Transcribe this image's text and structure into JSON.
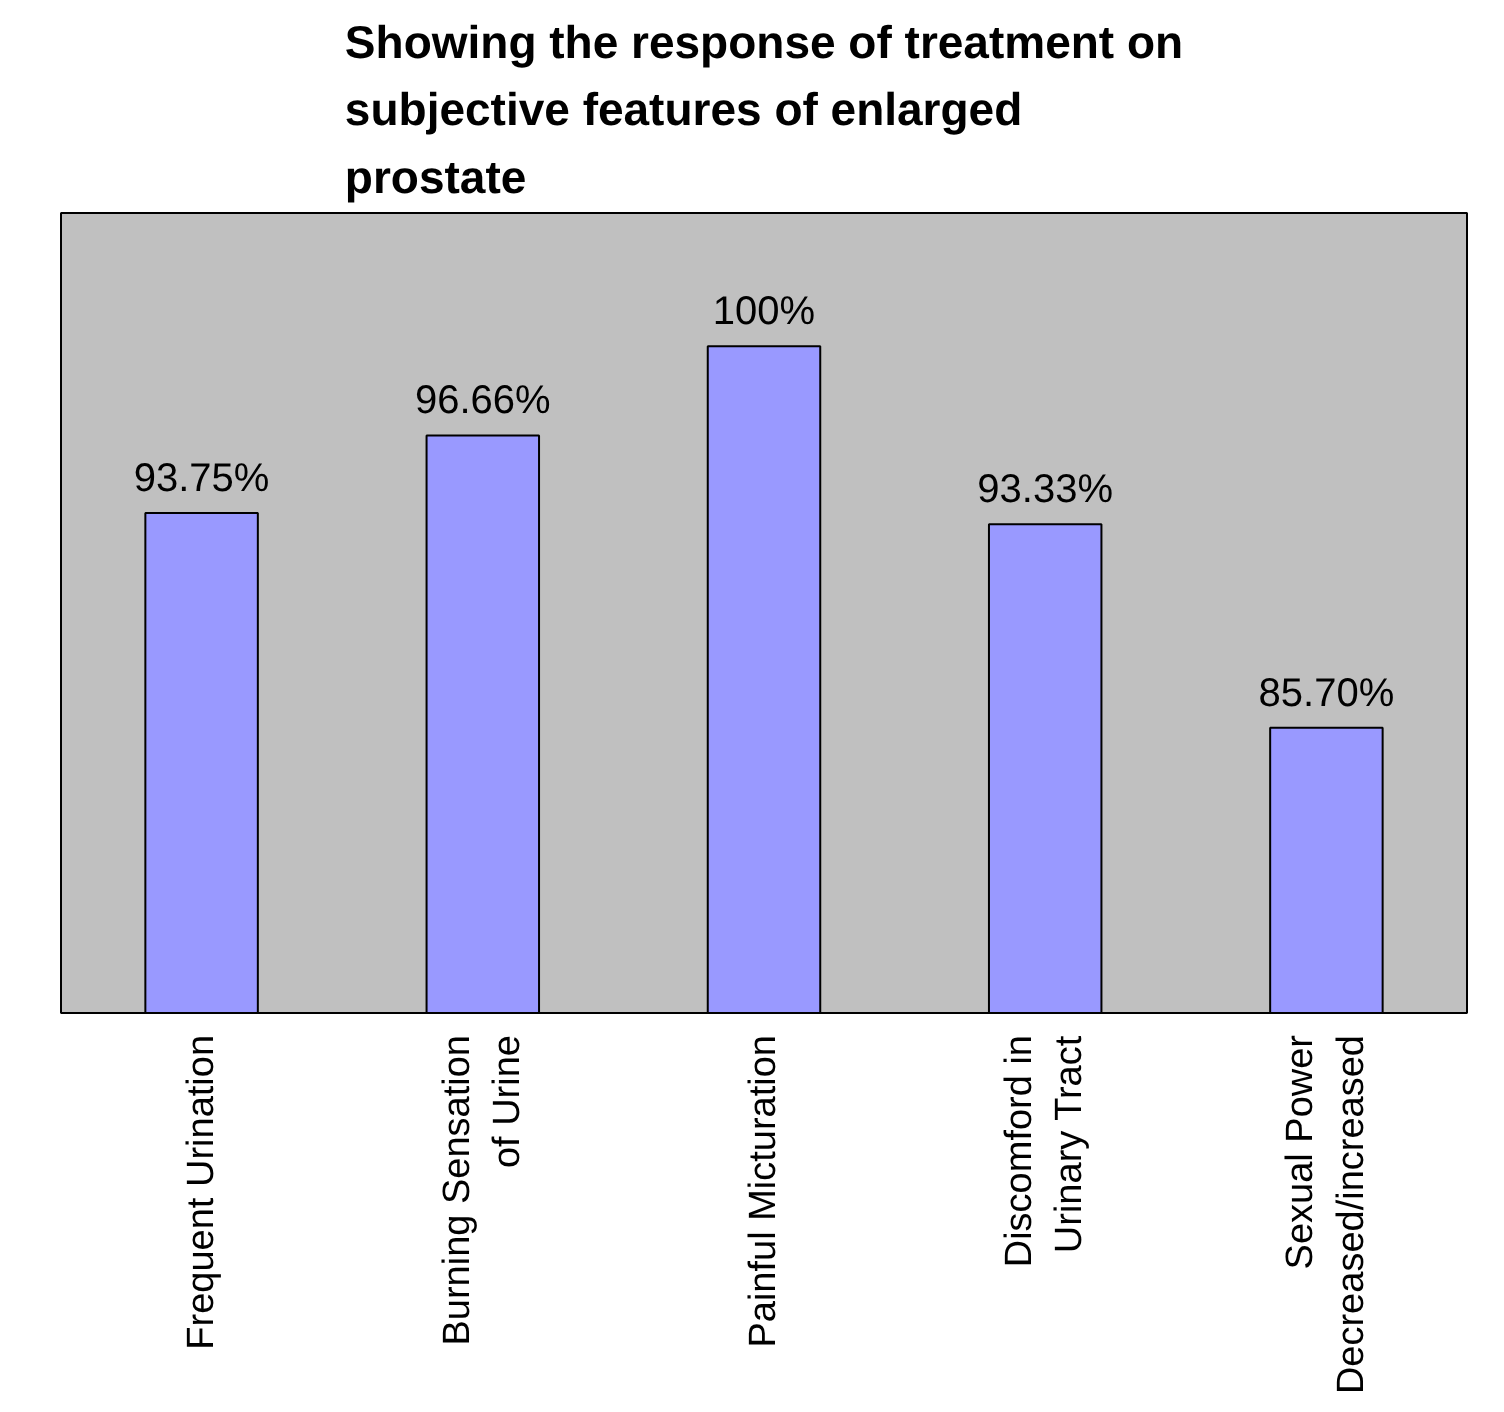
{
  "chart_data": {
    "type": "bar",
    "title": "Showing the response of treatment on subjective features of enlarged prostate",
    "categories": [
      "Frequent Urination",
      "Burning Sensation\nof Urine",
      "Painful Micturation",
      "Discomford in\nUrinary Tract",
      "Sexual Power\nDecreased/increased"
    ],
    "values": [
      93.75,
      96.66,
      100,
      93.33,
      85.7
    ],
    "value_labels": [
      "93.75%",
      "96.66%",
      "100%",
      "93.33%",
      "85.70%"
    ],
    "color": "#9999ff",
    "ylim": [
      75,
      105
    ],
    "grid": false
  }
}
